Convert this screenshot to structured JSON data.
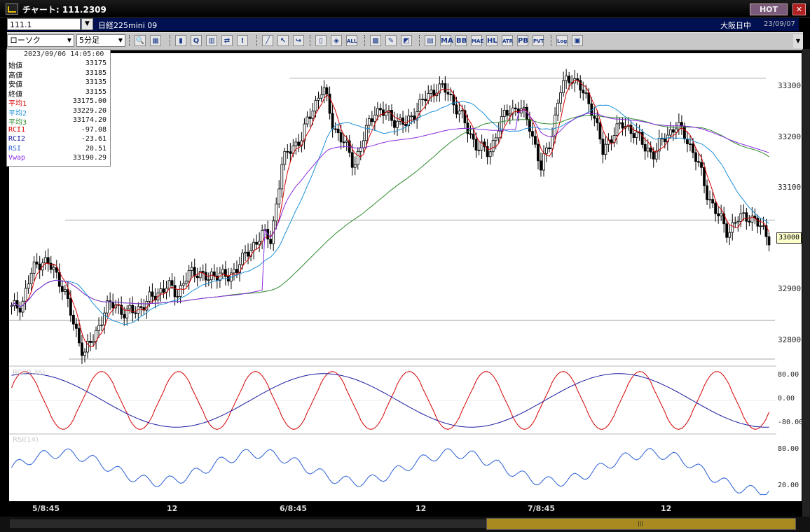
{
  "window": {
    "title": "チャート: 111.2309",
    "hot_label": "HOT",
    "close_label": "✕"
  },
  "infobar": {
    "symbol_code": "111.1",
    "instrument": "日経225mini 09",
    "market_status": "大阪日中",
    "date": "23/09/07"
  },
  "toolbar": {
    "chart_type": "ローソク",
    "timeframe": "5分足",
    "buttons": [
      {
        "name": "zoom-button",
        "glyph": "🔍"
      },
      {
        "name": "layout-button",
        "glyph": "▦"
      },
      {
        "name": "candle-up-button",
        "glyph": "▮"
      },
      {
        "name": "search-button",
        "glyph": "Q"
      },
      {
        "name": "bars-button",
        "glyph": "▥"
      },
      {
        "name": "compare-button",
        "glyph": "⇄"
      },
      {
        "name": "disabled-button",
        "glyph": "!"
      },
      {
        "name": "draw-line-button",
        "glyph": "╱"
      },
      {
        "name": "cursor-button",
        "glyph": "↖"
      },
      {
        "name": "jump-button",
        "glyph": "↪"
      },
      {
        "name": "candle-button",
        "glyph": "▯"
      },
      {
        "name": "candle-marker-button",
        "glyph": "◈"
      },
      {
        "name": "all-button",
        "glyph": "ALL"
      },
      {
        "name": "pattern-button",
        "glyph": "▩"
      },
      {
        "name": "tools-button",
        "glyph": "✎"
      },
      {
        "name": "color-button",
        "glyph": "◩"
      },
      {
        "name": "grid-button",
        "glyph": "▤"
      },
      {
        "name": "ma-button",
        "glyph": "MA"
      },
      {
        "name": "bb-button",
        "glyph": "BB"
      },
      {
        "name": "mae-button",
        "glyph": "MAE"
      },
      {
        "name": "hl-button",
        "glyph": "HL"
      },
      {
        "name": "atr-button",
        "glyph": "ATR"
      },
      {
        "name": "pb-button",
        "glyph": "PB"
      },
      {
        "name": "pvt-button",
        "glyph": "PVT"
      },
      {
        "name": "log-button",
        "glyph": "Log"
      },
      {
        "name": "settings-button",
        "glyph": "▣"
      }
    ]
  },
  "info_panel": {
    "datetime": "2023/09/06 14:05:00",
    "rows": [
      {
        "label": "始値",
        "value": "33175",
        "color": "#000000"
      },
      {
        "label": "高値",
        "value": "33185",
        "color": "#000000"
      },
      {
        "label": "安値",
        "value": "33135",
        "color": "#000000"
      },
      {
        "label": "終値",
        "value": "33155",
        "color": "#000000"
      },
      {
        "label": "平均1",
        "value": "33175.00",
        "color": "#d40000"
      },
      {
        "label": "平均2",
        "value": "33229.20",
        "color": "#1a8fd8"
      },
      {
        "label": "平均3",
        "value": "33174.20",
        "color": "#2e8b2e"
      },
      {
        "label": "RCI1",
        "value": "-97.08",
        "color": "#d40000"
      },
      {
        "label": "RCI2",
        "value": "-23.61",
        "color": "#1a1aa0"
      },
      {
        "label": "RSI",
        "value": "20.51",
        "color": "#2a5fd6"
      },
      {
        "label": "Vwap",
        "value": "33190.29",
        "color": "#8a2be2"
      }
    ]
  },
  "price_axis": {
    "ticks": [
      "33300",
      "33200",
      "33100",
      "33000",
      "32900",
      "32800"
    ],
    "current_price": "33000"
  },
  "rci_panel": {
    "title": "RCI(9,36)",
    "ticks": [
      "80.00",
      "0.00",
      "-80.00"
    ]
  },
  "rsi_panel": {
    "title": "RSI(14)",
    "ticks": [
      "80.00",
      "20.00"
    ]
  },
  "time_axis": {
    "labels": [
      "5/8:45",
      "12",
      "6/8:45",
      "12",
      "7/8:45",
      "12"
    ]
  },
  "chart_data": {
    "type": "line",
    "title": "",
    "y_range": [
      32770,
      33330
    ],
    "series": [
      {
        "name": "平均1",
        "color": "#d40000"
      },
      {
        "name": "平均2",
        "color": "#1a8fd8"
      },
      {
        "name": "平均3",
        "color": "#2e8b2e"
      },
      {
        "name": "Vwap",
        "color": "#8a2be2"
      }
    ],
    "candles_close_approx": [
      32870,
      32880,
      32940,
      32960,
      32940,
      32910,
      32840,
      32790,
      32820,
      32870,
      32880,
      32860,
      32870,
      32880,
      32900,
      32910,
      32900,
      32930,
      32940,
      32920,
      32940,
      32920,
      32960,
      32970,
      33010,
      32990,
      33130,
      33160,
      33180,
      33230,
      33270,
      33200,
      33170,
      33130,
      33180,
      33230,
      33220,
      33210,
      33200,
      33230,
      33250,
      33270,
      33260,
      33230,
      33190,
      33160,
      33150,
      33200,
      33230,
      33230,
      33200,
      33120,
      33180,
      33270,
      33290,
      33260,
      33230,
      33150,
      33190,
      33200,
      33190,
      33160,
      33150,
      33180,
      33200,
      33180,
      33140,
      33080,
      33040,
      33010,
      33030,
      33040,
      33020,
      33000
    ]
  }
}
